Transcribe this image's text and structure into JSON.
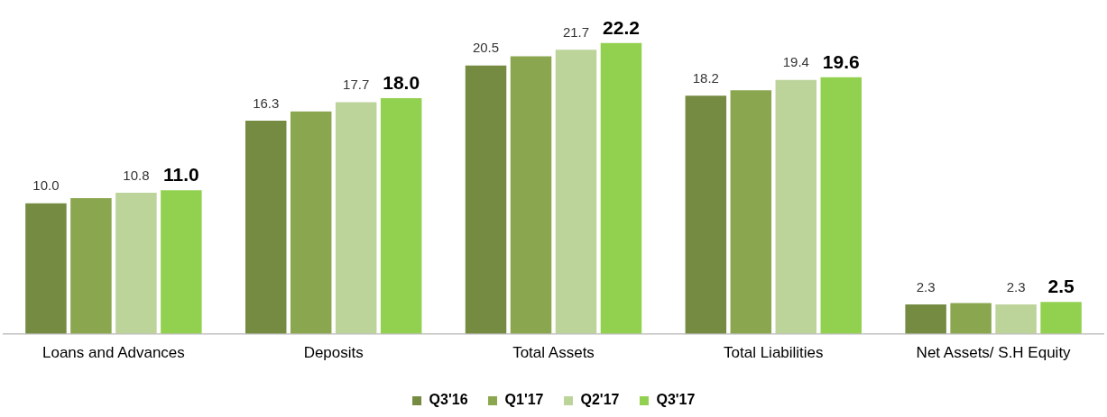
{
  "chart_data": {
    "type": "bar",
    "categories": [
      "Loans and Advances",
      "Deposits",
      "Total Assets",
      "Total Liabilities",
      "Net Assets/ S.H Equity"
    ],
    "series": [
      {
        "name": "Q3'16",
        "color": "#748b41",
        "values": [
          10.0,
          16.3,
          20.5,
          18.2,
          2.3
        ],
        "value_labels": [
          "10.0",
          "16.3",
          "20.5",
          "18.2",
          "2.3"
        ]
      },
      {
        "name": "Q1'17",
        "color": "#8aa64e",
        "values": [
          10.4,
          17.0,
          21.2,
          18.6,
          2.4
        ],
        "value_labels": [
          null,
          null,
          null,
          null,
          null
        ]
      },
      {
        "name": "Q2'17",
        "color": "#bcd39a",
        "values": [
          10.8,
          17.7,
          21.7,
          19.4,
          2.3
        ],
        "value_labels": [
          "10.8",
          "17.7",
          "21.7",
          "19.4",
          "2.3"
        ]
      },
      {
        "name": "Q3'17",
        "color": "#92d050",
        "values": [
          11.0,
          18.0,
          22.2,
          19.6,
          2.5
        ],
        "value_labels": [
          "11.0",
          "18.0",
          "22.2",
          "19.6",
          "2.5"
        ]
      }
    ],
    "legend": "bottom",
    "grid": false
  }
}
